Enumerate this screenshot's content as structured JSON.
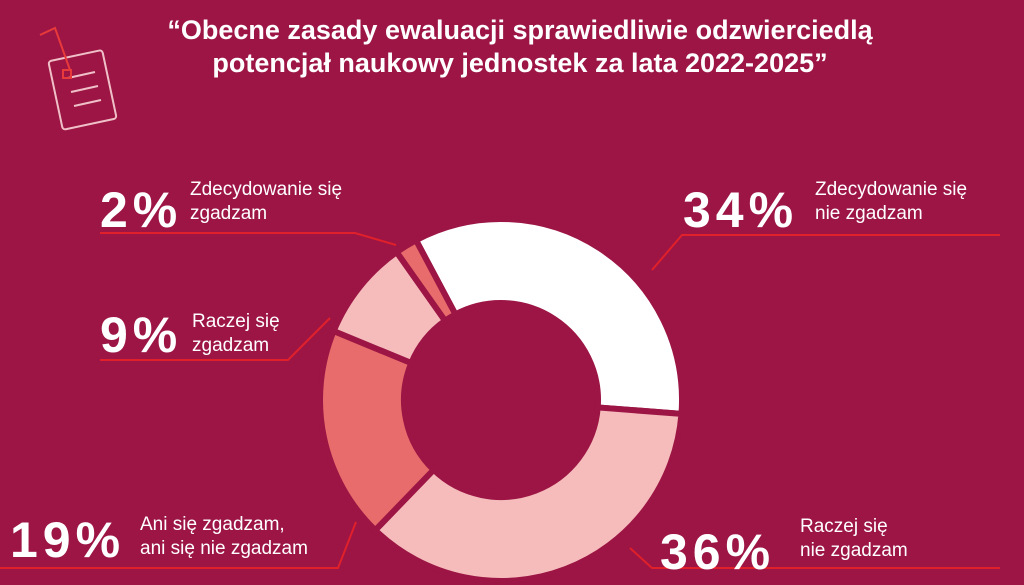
{
  "chart_data": {
    "type": "donut",
    "title": "“Obecne zasady ewaluacji sprawiedliwie odzwierciedlą\npotencjał naukowy jednostek za lata 2022-2025”",
    "categories": [
      "Zdecydowanie się\nnie zgadzam",
      "Raczej się\nnie zgadzam",
      "Ani się zgadzam,\nani się nie zgadzam",
      "Raczej się\nzgadzam",
      "Zdecydowanie się\nzgadzam"
    ],
    "values": [
      34,
      36,
      19,
      9,
      2
    ],
    "value_labels": [
      "34%",
      "36%",
      "19%",
      "9%",
      "2%"
    ],
    "colors": [
      "#ffffff",
      "#f5bcbb",
      "#e86c6b",
      "#f5bcbb",
      "#e86c6b"
    ]
  }
}
